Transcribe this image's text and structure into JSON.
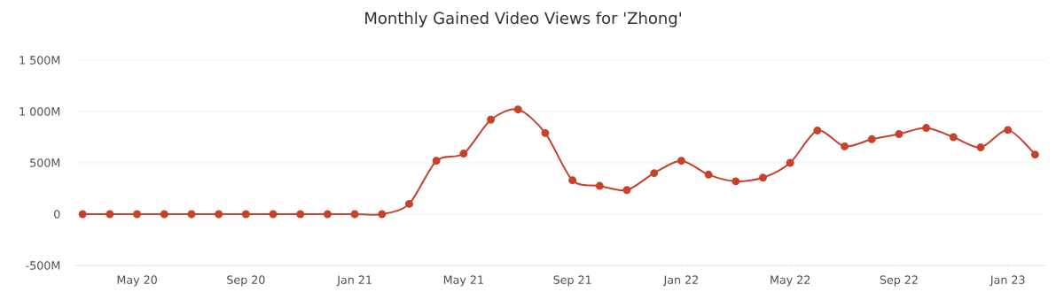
{
  "chart_data": {
    "type": "line",
    "title": "Monthly Gained Video Views for 'Zhong'",
    "x": [
      "2020-03",
      "2020-04",
      "2020-05",
      "2020-06",
      "2020-07",
      "2020-08",
      "2020-09",
      "2020-10",
      "2020-11",
      "2020-12",
      "2021-01",
      "2021-02",
      "2021-03",
      "2021-04",
      "2021-05",
      "2021-06",
      "2021-07",
      "2021-08",
      "2021-09",
      "2021-10",
      "2021-11",
      "2021-12",
      "2022-01",
      "2022-02",
      "2022-03",
      "2022-04",
      "2022-05",
      "2022-06",
      "2022-07",
      "2022-08",
      "2022-09",
      "2022-10",
      "2022-11",
      "2022-12",
      "2023-01",
      "2023-02"
    ],
    "series": [
      {
        "color": "#c8412b",
        "values": [
          0,
          0,
          0,
          0,
          0,
          0,
          0,
          0,
          0,
          0,
          0,
          0,
          100,
          520,
          590,
          920,
          1020,
          790,
          330,
          275,
          235,
          400,
          520,
          385,
          320,
          355,
          500,
          815,
          660,
          730,
          780,
          840,
          750,
          650,
          820,
          580
        ]
      }
    ],
    "xlim": [
      "2020-02-23",
      "2023-02-13"
    ],
    "xticks": [
      {
        "value": "2020-05",
        "label": "May 20"
      },
      {
        "value": "2020-09",
        "label": "Sep 20"
      },
      {
        "value": "2021-01",
        "label": "Jan 21"
      },
      {
        "value": "2021-05",
        "label": "May 21"
      },
      {
        "value": "2021-09",
        "label": "Sep 21"
      },
      {
        "value": "2022-01",
        "label": "Jan 22"
      },
      {
        "value": "2022-05",
        "label": "May 22"
      },
      {
        "value": "2022-09",
        "label": "Sep 22"
      },
      {
        "value": "2023-01",
        "label": "Jan 23"
      }
    ],
    "ylim": [
      -500,
      1500
    ],
    "yticks": [
      {
        "value": -500,
        "label": "-500M"
      },
      {
        "value": 0,
        "label": "0"
      },
      {
        "value": 500,
        "label": "500M"
      },
      {
        "value": 1000,
        "label": "1 000M"
      },
      {
        "value": 1500,
        "label": "1 500M"
      }
    ],
    "grid": "y",
    "marker": "circle",
    "line_style": "solid"
  }
}
